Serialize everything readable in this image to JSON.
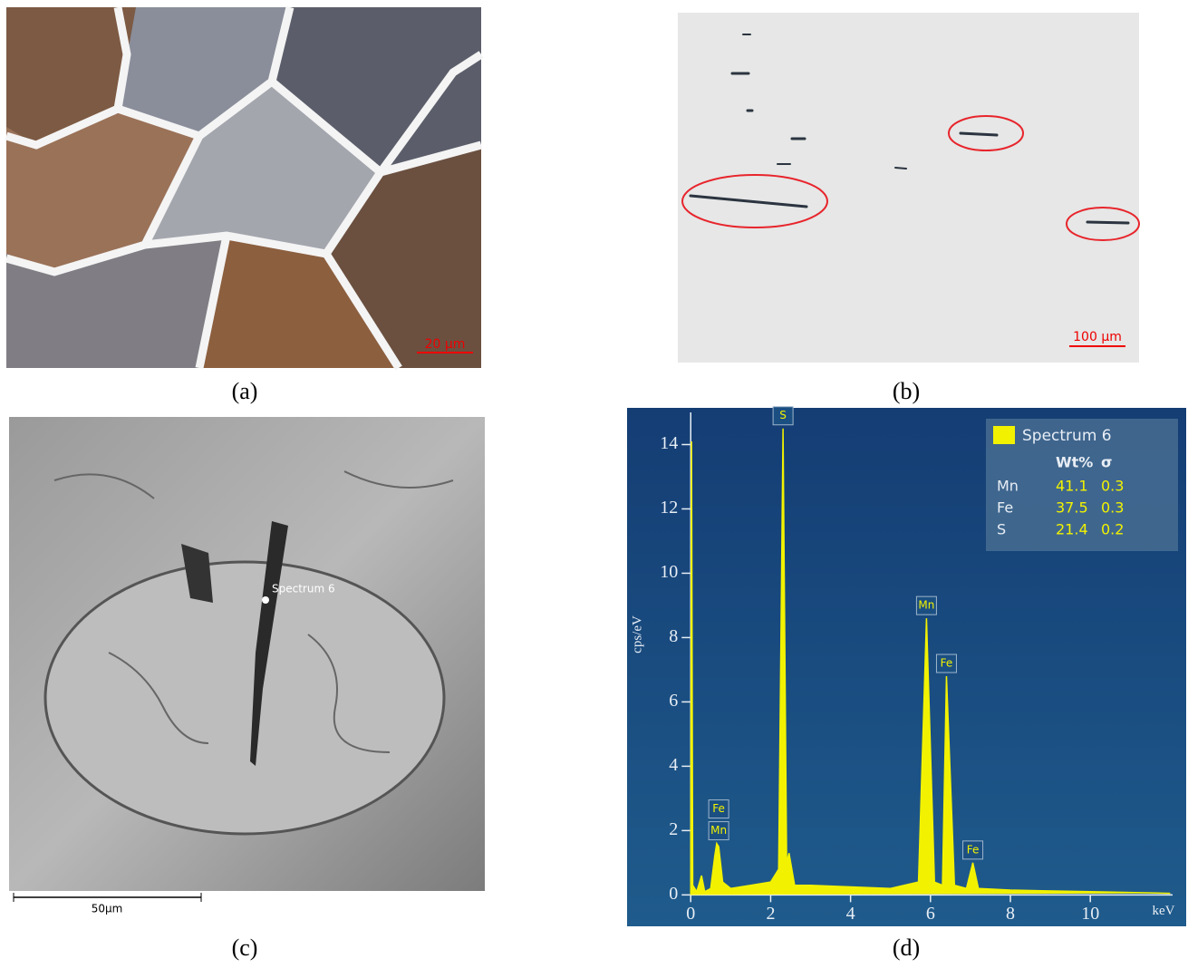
{
  "panels": [
    {
      "label": "(a)",
      "scale_bar": "20 µm"
    },
    {
      "label": "(b)",
      "scale_bar": "100 µm"
    },
    {
      "label": "(c)",
      "scale_bar": "50µm",
      "annotation": "Spectrum 6"
    },
    {
      "label": "(d)"
    }
  ],
  "chart_data": {
    "type": "line",
    "x_label": "keV",
    "y_label": "cps/eV",
    "xlim": [
      -0.55,
      12.15
    ],
    "ylim": [
      -0.3,
      15
    ],
    "xticks": [
      0,
      2,
      4,
      6,
      8,
      10
    ],
    "yticks": [
      0,
      2,
      4,
      6,
      8,
      10,
      12,
      14
    ],
    "x": [
      0,
      0.02,
      0.05,
      0.15,
      0.27,
      0.35,
      0.5,
      0.6,
      0.65,
      0.7,
      0.8,
      1.0,
      1.5,
      2.0,
      2.2,
      2.31,
      2.4,
      2.46,
      2.6,
      3.0,
      4.0,
      5.0,
      5.7,
      5.9,
      6.1,
      6.3,
      6.4,
      6.6,
      6.9,
      7.06,
      7.2,
      8.0,
      10.0,
      12.0
    ],
    "series": [
      {
        "name": "Spectrum 6",
        "color": "#f2f200",
        "values": [
          0,
          14.1,
          0.3,
          0.1,
          0.6,
          0.1,
          0.2,
          1.2,
          1.6,
          1.5,
          0.4,
          0.2,
          0.3,
          0.4,
          0.8,
          14.5,
          1.0,
          1.3,
          0.3,
          0.3,
          0.25,
          0.2,
          0.4,
          8.6,
          0.4,
          0.3,
          6.8,
          0.3,
          0.2,
          1.0,
          0.2,
          0.15,
          0.1,
          0.05
        ]
      }
    ],
    "peak_labels": [
      {
        "text": "Fe",
        "x": 0.7
      },
      {
        "text": "Mn",
        "x": 0.7
      },
      {
        "text": "S",
        "x": 2.31
      },
      {
        "text": "Mn",
        "x": 5.9
      },
      {
        "text": "Fe",
        "x": 6.4
      },
      {
        "text": "Fe",
        "x": 7.06
      }
    ],
    "table": {
      "columns": [
        "Wt%",
        "σ"
      ],
      "rows": [
        [
          "Mn",
          41.1,
          0.3
        ],
        [
          "Fe",
          37.5,
          0.3
        ],
        [
          "S",
          21.4,
          0.2
        ]
      ]
    }
  }
}
